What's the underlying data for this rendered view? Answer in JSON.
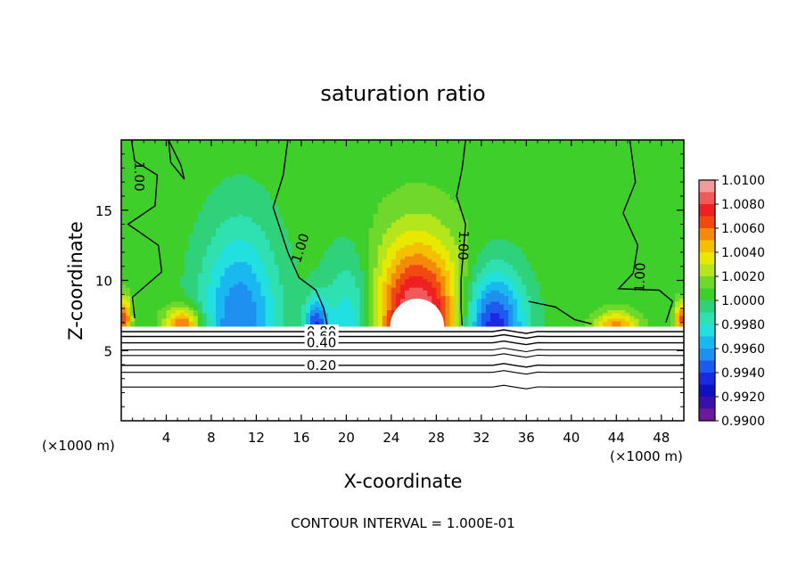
{
  "chart_data": {
    "type": "heatmap",
    "title": "saturation ratio",
    "xlabel": "X-coordinate",
    "ylabel": "Z-coordinate",
    "x_unit_left": "(×1000 m)",
    "x_unit_right": "(×1000 m)",
    "footer": "CONTOUR INTERVAL = 1.000E-01",
    "xlim": [
      0,
      50
    ],
    "ylim": [
      0,
      20
    ],
    "x_ticks": [
      4,
      8,
      12,
      16,
      20,
      24,
      28,
      32,
      36,
      40,
      44,
      48
    ],
    "y_ticks": [
      5,
      10,
      15
    ],
    "colorbar": {
      "labels": [
        "1.0100",
        "1.0080",
        "1.0060",
        "1.0040",
        "1.0020",
        "1.0000",
        "0.9980",
        "0.9960",
        "0.9940",
        "0.9920",
        "0.9900"
      ],
      "bands": [
        {
          "from": 1.009,
          "to": 1.01,
          "color": "#f39b9b"
        },
        {
          "from": 1.008,
          "to": 1.009,
          "color": "#f05a5a"
        },
        {
          "from": 1.007,
          "to": 1.008,
          "color": "#ee2020"
        },
        {
          "from": 1.006,
          "to": 1.007,
          "color": "#f04a10"
        },
        {
          "from": 1.005,
          "to": 1.006,
          "color": "#f58a0a"
        },
        {
          "from": 1.004,
          "to": 1.005,
          "color": "#f5c000"
        },
        {
          "from": 1.003,
          "to": 1.004,
          "color": "#e8e800"
        },
        {
          "from": 1.002,
          "to": 1.003,
          "color": "#b5e61d"
        },
        {
          "from": 1.001,
          "to": 1.002,
          "color": "#6fd82a"
        },
        {
          "from": 1.0,
          "to": 1.001,
          "color": "#3ecf2a"
        },
        {
          "from": 0.999,
          "to": 1.0,
          "color": "#2fd27a"
        },
        {
          "from": 0.998,
          "to": 0.999,
          "color": "#2fe0b0"
        },
        {
          "from": 0.997,
          "to": 0.998,
          "color": "#22e0e0"
        },
        {
          "from": 0.996,
          "to": 0.997,
          "color": "#1ab8f0"
        },
        {
          "from": 0.995,
          "to": 0.996,
          "color": "#1e90f0"
        },
        {
          "from": 0.994,
          "to": 0.995,
          "color": "#1e5af0"
        },
        {
          "from": 0.993,
          "to": 0.994,
          "color": "#1a2ae0"
        },
        {
          "from": 0.992,
          "to": 0.993,
          "color": "#1010c0"
        },
        {
          "from": 0.991,
          "to": 0.992,
          "color": "#3a10a8"
        },
        {
          "from": 0.99,
          "to": 0.991,
          "color": "#6a1a9a"
        }
      ]
    },
    "field": {
      "background": 1.0005,
      "cloud_base_z": 6.7,
      "features": [
        {
          "x": 26.3,
          "z": 6.7,
          "rx": 4.0,
          "rz": 6.0,
          "amp": 0.0095
        },
        {
          "x": 33.0,
          "z": 6.7,
          "rx": 2.8,
          "rz": 4.0,
          "amp": -0.0075
        },
        {
          "x": 10.5,
          "z": 6.7,
          "rx": 3.5,
          "rz": 7.0,
          "amp": -0.0055
        },
        {
          "x": 20.5,
          "z": 6.7,
          "rx": 2.5,
          "rz": 5.0,
          "amp": -0.004
        },
        {
          "x": 17.3,
          "z": 6.7,
          "rx": 1.0,
          "rz": 2.0,
          "amp": -0.006
        },
        {
          "x": 5.5,
          "z": 6.9,
          "rx": 1.6,
          "rz": 1.2,
          "amp": 0.006
        },
        {
          "x": 44.0,
          "z": 6.8,
          "rx": 1.8,
          "rz": 1.0,
          "amp": 0.005
        },
        {
          "x": 0.3,
          "z": 7.3,
          "rx": 0.6,
          "rz": 1.5,
          "amp": 0.006
        },
        {
          "x": 49.7,
          "z": 7.3,
          "rx": 0.5,
          "rz": 1.2,
          "amp": 0.006
        }
      ]
    },
    "subsaturated_contours": [
      {
        "label": "0.80",
        "z": 6.35
      },
      {
        "label": "0.60",
        "z": 6.0
      },
      {
        "label": "0.40",
        "z": 5.55
      },
      {
        "label": "",
        "z": 5.05
      },
      {
        "label": "",
        "z": 4.65
      },
      {
        "label": "0.20",
        "z": 3.95
      },
      {
        "label": "",
        "z": 3.45
      },
      {
        "label": "",
        "z": 2.4
      }
    ],
    "contour_labels_1": [
      "1.00",
      "1.00",
      "1.00",
      "1.00"
    ]
  }
}
